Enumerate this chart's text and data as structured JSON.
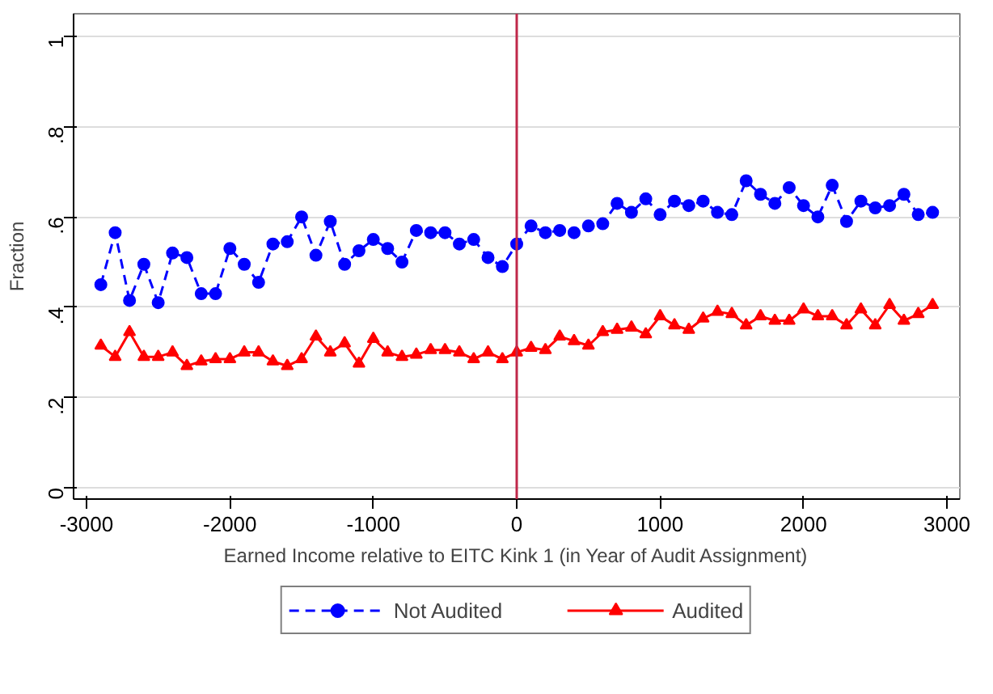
{
  "chart_data": {
    "type": "line",
    "xlabel": "Earned Income relative to EITC Kink 1 (in Year of Audit Assignment)",
    "ylabel": "Fraction",
    "x": [
      -2900,
      -2800,
      -2700,
      -2600,
      -2500,
      -2400,
      -2300,
      -2200,
      -2100,
      -2000,
      -1900,
      -1800,
      -1700,
      -1600,
      -1500,
      -1400,
      -1300,
      -1200,
      -1100,
      -1000,
      -900,
      -800,
      -700,
      -600,
      -500,
      -400,
      -300,
      -200,
      -100,
      0,
      100,
      200,
      300,
      400,
      500,
      600,
      700,
      800,
      900,
      1000,
      1100,
      1200,
      1300,
      1400,
      1500,
      1600,
      1700,
      1800,
      1900,
      2000,
      2100,
      2200,
      2300,
      2400,
      2500,
      2600,
      2700,
      2800,
      2900
    ],
    "series": [
      {
        "name": "Not Audited",
        "color": "#0000ff",
        "marker": "circle",
        "line_style": "dashed",
        "values": [
          0.45,
          0.565,
          0.415,
          0.495,
          0.41,
          0.52,
          0.51,
          0.43,
          0.43,
          0.53,
          0.495,
          0.455,
          0.54,
          0.545,
          0.6,
          0.515,
          0.59,
          0.495,
          0.525,
          0.55,
          0.53,
          0.5,
          0.57,
          0.565,
          0.565,
          0.54,
          0.55,
          0.51,
          0.49,
          0.54,
          0.58,
          0.565,
          0.57,
          0.565,
          0.58,
          0.585,
          0.63,
          0.61,
          0.64,
          0.605,
          0.635,
          0.625,
          0.635,
          0.61,
          0.605,
          0.68,
          0.65,
          0.63,
          0.665,
          0.625,
          0.6,
          0.67,
          0.59,
          0.635,
          0.62,
          0.625,
          0.65,
          0.605,
          0.61
        ]
      },
      {
        "name": "Audited",
        "color": "#ff0000",
        "marker": "triangle",
        "line_style": "solid",
        "values": [
          0.315,
          0.29,
          0.345,
          0.29,
          0.29,
          0.3,
          0.27,
          0.28,
          0.285,
          0.285,
          0.3,
          0.3,
          0.28,
          0.27,
          0.285,
          0.335,
          0.3,
          0.32,
          0.275,
          0.33,
          0.3,
          0.29,
          0.295,
          0.305,
          0.305,
          0.3,
          0.285,
          0.3,
          0.285,
          0.3,
          0.31,
          0.305,
          0.335,
          0.325,
          0.315,
          0.345,
          0.35,
          0.355,
          0.34,
          0.38,
          0.36,
          0.35,
          0.375,
          0.39,
          0.385,
          0.36,
          0.38,
          0.37,
          0.37,
          0.395,
          0.38,
          0.38,
          0.36,
          0.395,
          0.36,
          0.405,
          0.37,
          0.385,
          0.405
        ]
      }
    ],
    "xlim": [
      -3090,
      3090
    ],
    "xticks": [
      -3000,
      -2000,
      -1000,
      0,
      1000,
      2000,
      3000
    ],
    "ylim": [
      -0.025,
      1.05
    ],
    "yticks": [
      0,
      {
        "value": 0.2,
        "label": ".2"
      },
      {
        "value": 0.4,
        "label": ".4"
      },
      {
        "value": 0.6,
        "label": ".6"
      },
      {
        "value": 0.8,
        "label": ".8"
      },
      1
    ],
    "grid": "y",
    "legend": "bottom",
    "ref_lines": [
      {
        "axis": "x",
        "value": 0,
        "color": "#c0284a",
        "line_style": "solid"
      }
    ]
  }
}
